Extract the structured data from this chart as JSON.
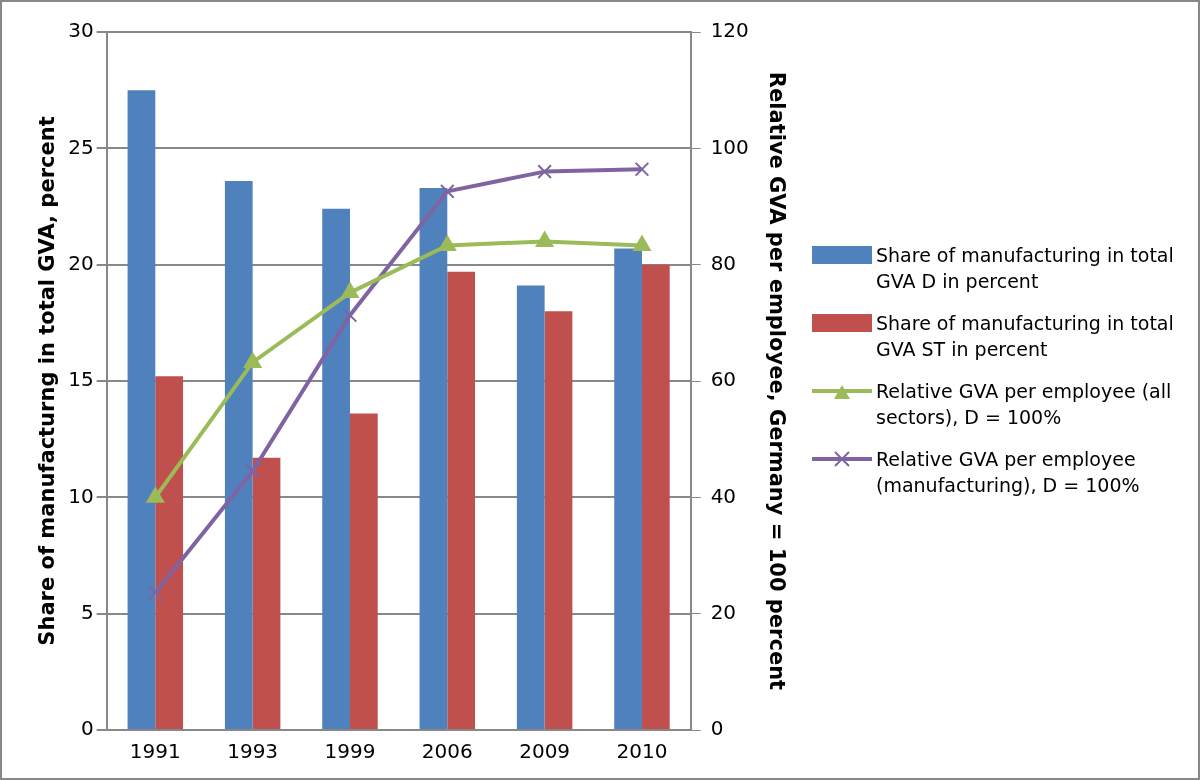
{
  "chart_data": {
    "type": "bar",
    "categories": [
      "1991",
      "1993",
      "1999",
      "2006",
      "2009",
      "2010"
    ],
    "ylabel": "Share of manufacturng in total GVA, percent",
    "y2label": "Relative GVA per employee, Germany = 100 percent",
    "ylim": [
      0,
      30
    ],
    "yticks": [
      0,
      5,
      10,
      15,
      20,
      25,
      30
    ],
    "y2lim": [
      0,
      120
    ],
    "y2ticks": [
      0,
      20,
      40,
      60,
      80,
      100,
      120
    ],
    "grid": "y",
    "legend": "right",
    "series": [
      {
        "name": "Share of manufacturing in total GVA  D in percent",
        "color": "#4f81bd",
        "values": [
          27.5,
          23.6,
          22.4,
          23.3,
          19.1,
          20.7
        ]
      },
      {
        "name": "Share of manufacturing in total GVA ST in percent",
        "color": "#c0504d",
        "values": [
          15.2,
          11.7,
          13.6,
          19.7,
          18.0,
          20.0
        ]
      },
      {
        "name": "Relative GVA per employee (all sectors), D = 100%",
        "type": "line",
        "axis": "y2",
        "marker": "triangle",
        "color": "#9bbb59",
        "values": [
          40,
          63.2,
          75.2,
          83.3,
          84,
          83.3
        ]
      },
      {
        "name": "Relative GVA per employee (manufacturing), D = 100%",
        "type": "line",
        "axis": "y2",
        "marker": "cross",
        "color": "#8064a2",
        "values": [
          23.6,
          44.5,
          71.3,
          92.6,
          96,
          96.4
        ]
      }
    ]
  }
}
